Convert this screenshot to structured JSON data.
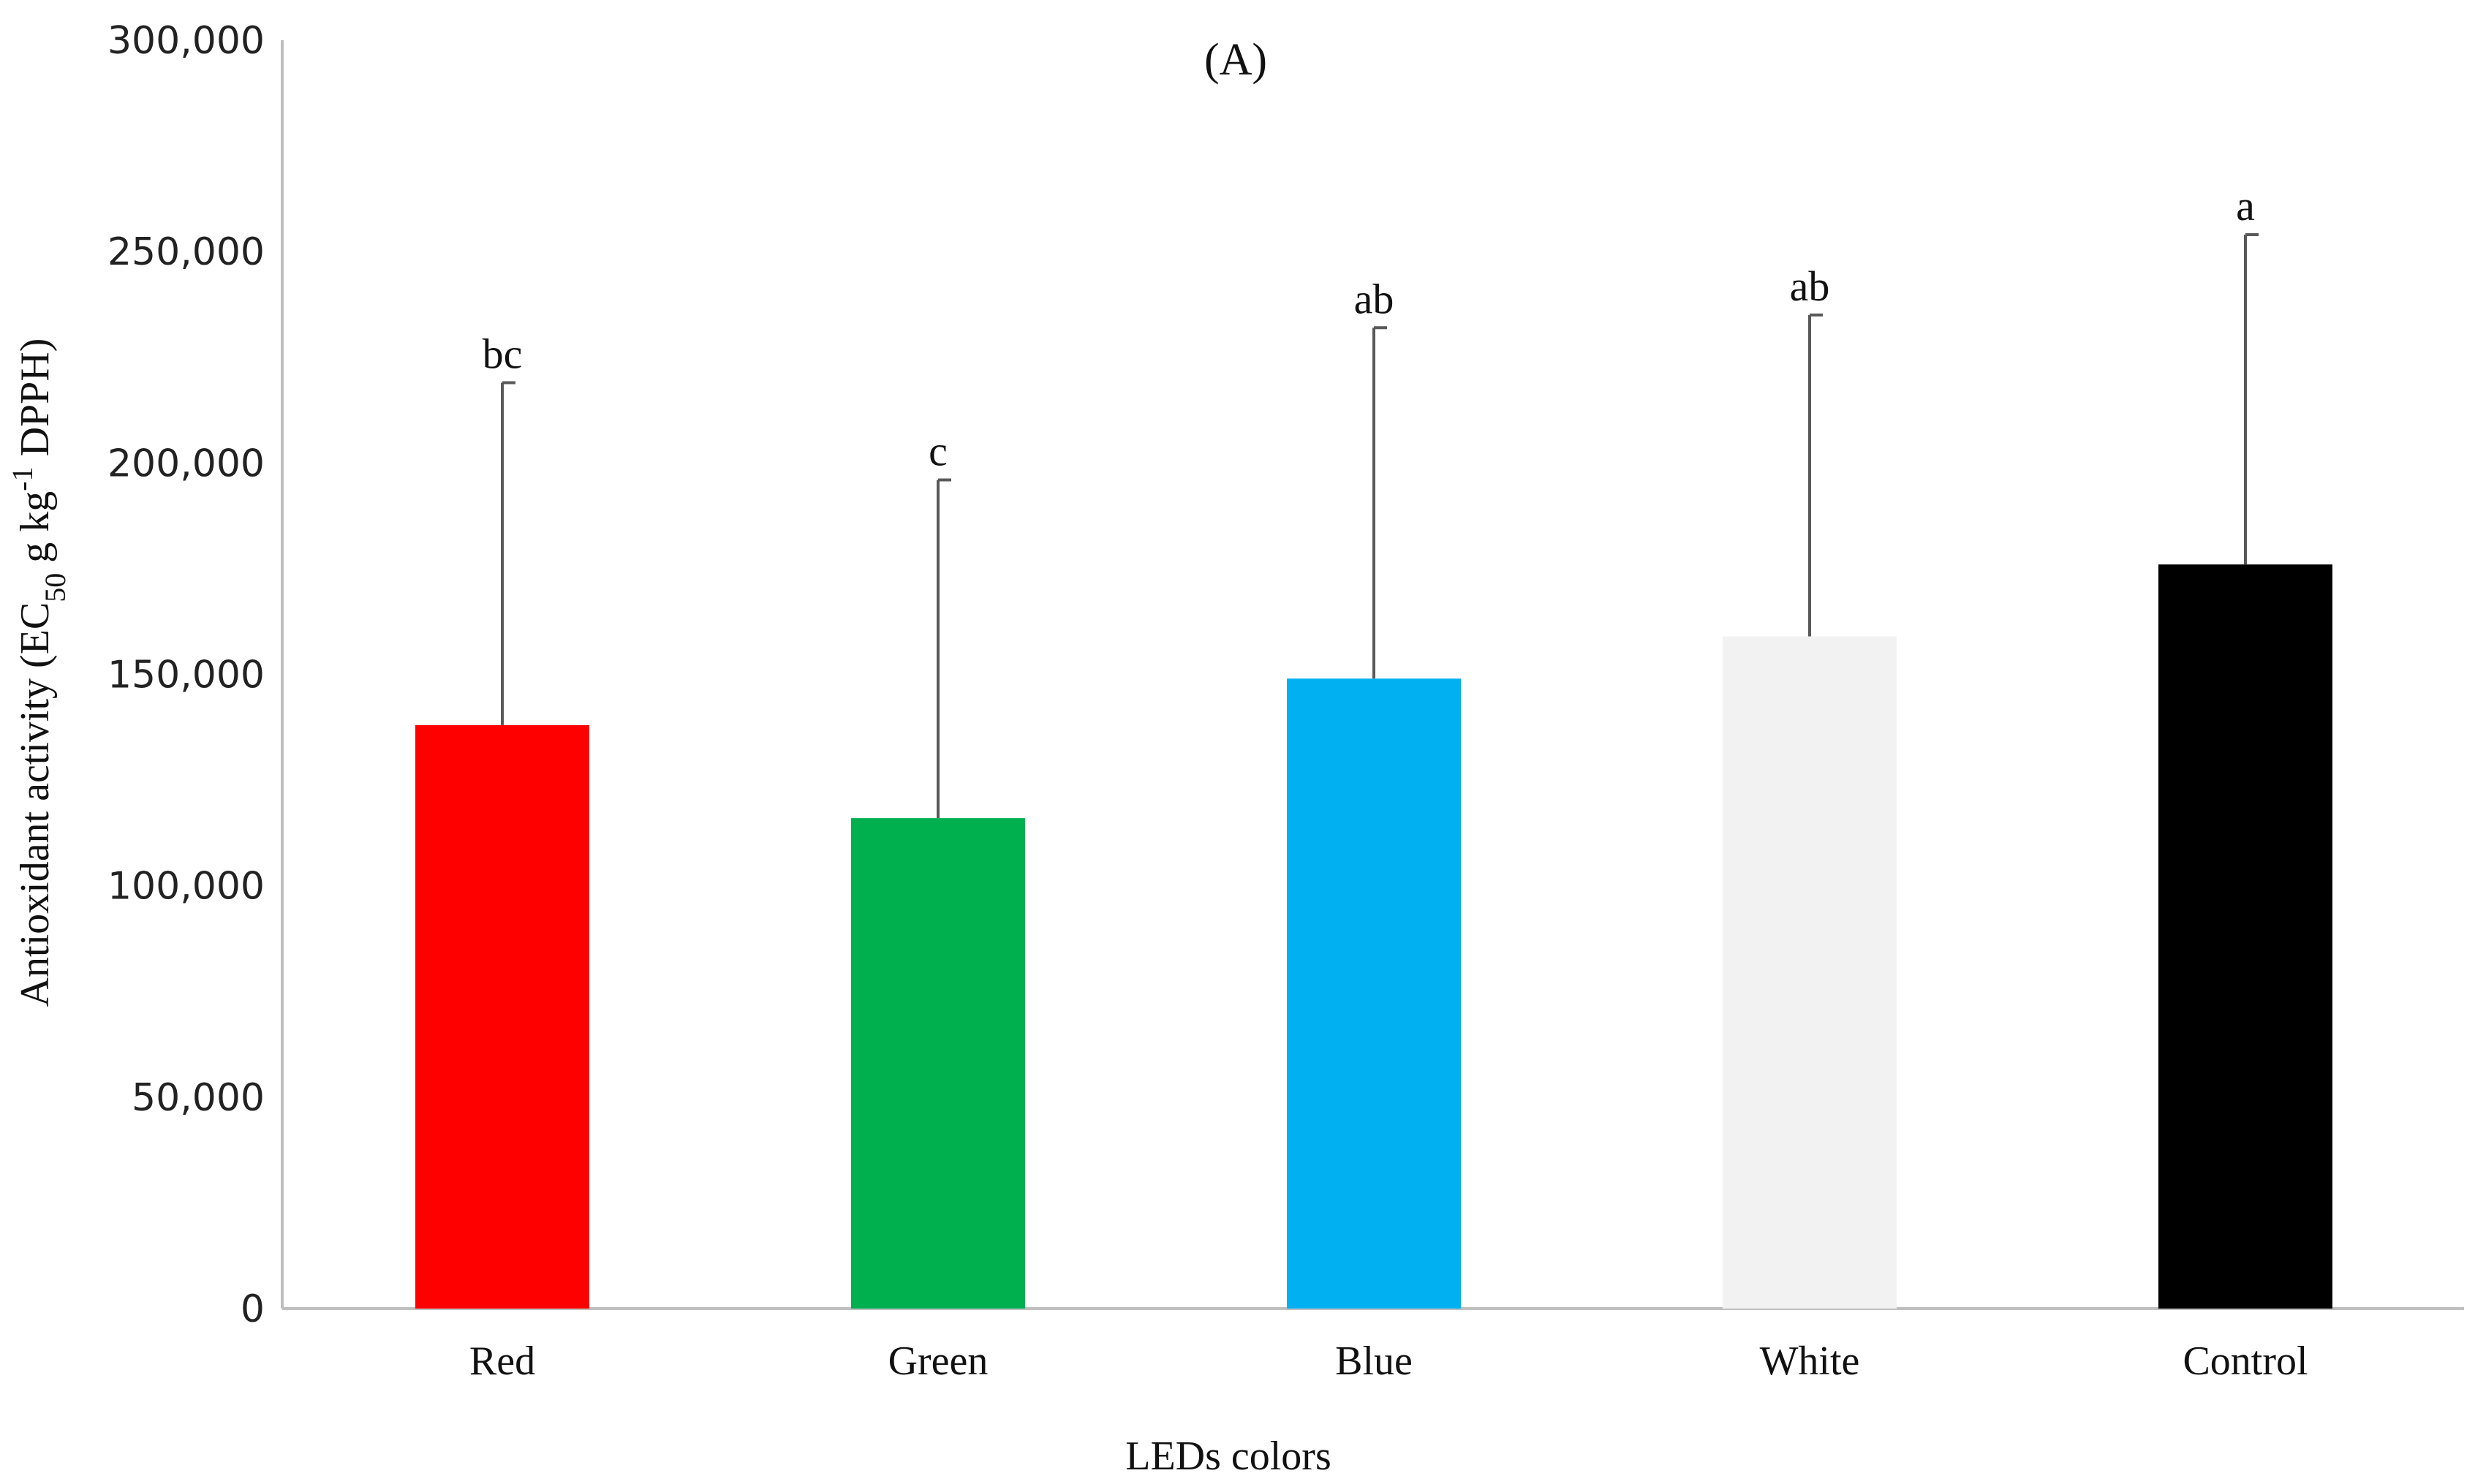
{
  "chart_data": {
    "type": "bar",
    "title": "(A)",
    "xlabel": "LEDs colors",
    "ylabel": {
      "prefix": "Antioxidant activity (EC",
      "sub": "50",
      "mid": " g kg",
      "sup": "-1",
      "suffix": " DPPH)"
    },
    "categories": [
      "Red",
      "Green",
      "Blue",
      "White",
      "Control"
    ],
    "values": [
      138000,
      116000,
      149000,
      159000,
      176000
    ],
    "error_plus": [
      81000,
      80000,
      83000,
      76000,
      78000
    ],
    "significance": [
      "bc",
      "c",
      "ab",
      "ab",
      "a"
    ],
    "colors": [
      "#ff0000",
      "#00b04f",
      "#00b0f0",
      "#f2f2f2",
      "#000000"
    ],
    "ylim": [
      0,
      300000
    ],
    "yticks": [
      0,
      50000,
      100000,
      150000,
      200000,
      250000,
      300000
    ],
    "ytick_labels": [
      "0",
      "50,000",
      "100,000",
      "150,000",
      "200,000",
      "250,000",
      "300,000"
    ],
    "grid": false,
    "legend": false
  }
}
